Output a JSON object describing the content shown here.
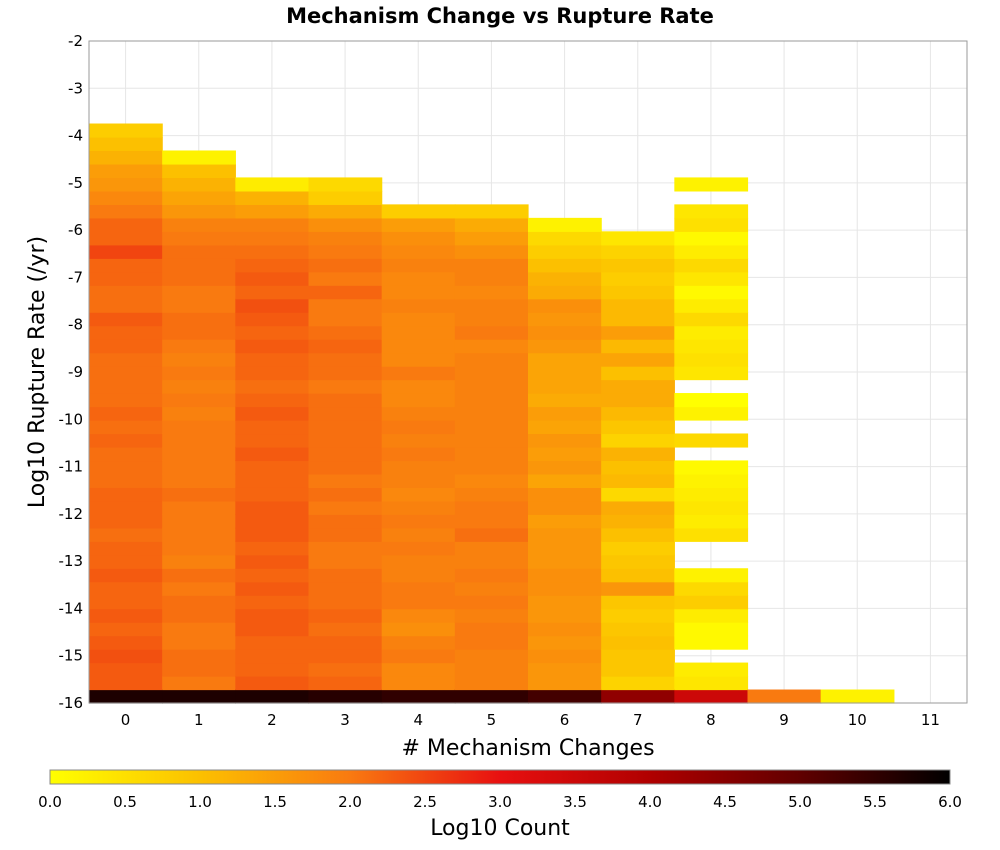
{
  "chart_data": {
    "type": "heatmap",
    "title": "Mechanism Change vs Rupture Rate",
    "xlabel": "# Mechanism Changes",
    "ylabel": "Log10 Rupture Rate (/yr)",
    "x_categories": [
      "0",
      "1",
      "2",
      "3",
      "4",
      "5",
      "6",
      "7",
      "8",
      "9",
      "10",
      "11"
    ],
    "x_tick_labels": [
      "0",
      "1",
      "2",
      "3",
      "4",
      "5",
      "6",
      "7",
      "8",
      "9",
      "10",
      "11"
    ],
    "y_tick_labels": [
      "-2",
      "-3",
      "-4",
      "-5",
      "-6",
      "-7",
      "-8",
      "-9",
      "-10",
      "-11",
      "-12",
      "-13",
      "-14",
      "-15",
      "-16"
    ],
    "ylim": [
      -16,
      -2
    ],
    "y_bin_width": 0.285,
    "grid": true,
    "colorbar": {
      "label": "Log10 Count",
      "range": [
        0.0,
        6.0
      ],
      "tick_labels": [
        "0.0",
        "0.5",
        "1.0",
        "1.5",
        "2.0",
        "2.5",
        "3.0",
        "3.5",
        "4.0",
        "4.5",
        "5.0",
        "5.5",
        "6.0"
      ],
      "stops": [
        {
          "value": 0.0,
          "color": "#ffff00"
        },
        {
          "value": 1.0,
          "color": "#fcc000"
        },
        {
          "value": 2.0,
          "color": "#f97a10"
        },
        {
          "value": 3.0,
          "color": "#e81010"
        },
        {
          "value": 4.0,
          "color": "#b00000"
        },
        {
          "value": 5.0,
          "color": "#600000"
        },
        {
          "value": 6.0,
          "color": "#000000"
        }
      ]
    },
    "columns": [
      {
        "x": "0",
        "y_start": -16,
        "values": [
          5.7,
          2.3,
          2.3,
          2.4,
          2.3,
          2.2,
          2.3,
          2.2,
          2.2,
          2.3,
          2.2,
          2.2,
          2.1,
          2.2,
          2.2,
          2.2,
          2.1,
          2.1,
          2.1,
          2.2,
          2.1,
          2.2,
          2.1,
          2.1,
          2.1,
          2.1,
          2.2,
          2.2,
          2.3,
          2.1,
          2.1,
          2.2,
          2.2,
          2.5,
          2.2,
          2.2,
          2.0,
          1.8,
          1.6,
          1.5,
          1.2,
          1.0,
          0.8
        ]
      },
      {
        "x": "1",
        "y_start": -16,
        "values": [
          5.7,
          2.0,
          2.1,
          2.1,
          2.0,
          2.0,
          2.1,
          2.1,
          2.0,
          2.1,
          1.9,
          2.0,
          2.0,
          2.0,
          2.0,
          2.1,
          2.0,
          2.0,
          2.0,
          2.0,
          2.0,
          1.9,
          2.0,
          1.9,
          2.0,
          1.9,
          2.0,
          2.1,
          2.1,
          2.0,
          2.0,
          2.1,
          2.1,
          2.1,
          2.0,
          1.9,
          1.6,
          1.4,
          1.2,
          1.0,
          0.2
        ]
      },
      {
        "x": "2",
        "y_start": -16,
        "values": [
          5.7,
          2.3,
          2.2,
          2.2,
          2.2,
          2.3,
          2.3,
          2.2,
          2.3,
          2.2,
          2.3,
          2.2,
          2.3,
          2.3,
          2.3,
          2.2,
          2.2,
          2.2,
          2.3,
          2.2,
          2.2,
          2.3,
          2.2,
          2.1,
          2.2,
          2.2,
          2.3,
          2.2,
          2.3,
          2.4,
          2.2,
          2.3,
          2.2,
          2.1,
          2.0,
          1.9,
          1.5,
          1.2,
          0.3
        ]
      },
      {
        "x": "3",
        "y_start": -16,
        "values": [
          5.6,
          2.2,
          2.1,
          2.2,
          2.2,
          2.1,
          2.2,
          2.1,
          2.1,
          2.1,
          2.0,
          2.0,
          2.1,
          2.1,
          2.0,
          2.1,
          2.0,
          2.1,
          2.1,
          2.1,
          2.1,
          2.1,
          2.1,
          2.0,
          2.1,
          2.1,
          2.2,
          2.1,
          2.0,
          2.0,
          2.2,
          2.0,
          2.1,
          2.0,
          1.9,
          1.7,
          1.3,
          0.8,
          0.6
        ]
      },
      {
        "x": "4",
        "y_start": -16,
        "values": [
          5.5,
          1.8,
          1.8,
          2.0,
          1.9,
          1.7,
          1.8,
          2.0,
          2.0,
          1.9,
          1.9,
          2.0,
          1.9,
          2.0,
          1.9,
          1.8,
          1.9,
          1.9,
          2.0,
          1.9,
          2.0,
          1.9,
          1.8,
          1.8,
          2.0,
          1.8,
          1.8,
          1.8,
          1.8,
          1.9,
          1.8,
          1.8,
          1.9,
          1.8,
          1.7,
          1.5,
          0.8
        ]
      },
      {
        "x": "5",
        "y_start": -16,
        "values": [
          5.5,
          1.9,
          1.9,
          1.9,
          2.0,
          2.0,
          1.9,
          2.0,
          1.9,
          2.0,
          1.9,
          1.9,
          2.1,
          2.0,
          2.0,
          1.9,
          1.8,
          1.9,
          1.9,
          1.9,
          1.9,
          1.9,
          1.9,
          1.9,
          1.9,
          1.9,
          1.8,
          2.0,
          1.9,
          1.9,
          1.8,
          1.9,
          1.9,
          1.7,
          1.5,
          1.3,
          0.8
        ]
      },
      {
        "x": "6",
        "y_start": -16,
        "values": [
          5.3,
          1.6,
          1.6,
          1.7,
          1.6,
          1.7,
          1.6,
          1.6,
          1.7,
          1.7,
          1.6,
          1.6,
          1.6,
          1.5,
          1.7,
          1.7,
          1.4,
          1.6,
          1.5,
          1.6,
          1.4,
          1.5,
          1.3,
          1.4,
          1.4,
          1.4,
          1.6,
          1.7,
          1.6,
          1.7,
          1.3,
          1.2,
          1.0,
          0.8,
          0.6,
          0.2
        ]
      },
      {
        "x": "7",
        "y_start": -16,
        "values": [
          4.4,
          0.7,
          0.9,
          0.9,
          1.0,
          0.9,
          0.8,
          0.9,
          1.6,
          1.0,
          0.9,
          0.8,
          1.0,
          1.2,
          1.3,
          0.6,
          1.1,
          1.0,
          1.2,
          0.7,
          0.9,
          1.1,
          1.3,
          1.3,
          1.0,
          1.4,
          1.1,
          1.5,
          1.1,
          1.1,
          0.9,
          0.8,
          0.9,
          0.7,
          0.4
        ]
      },
      {
        "x": "8",
        "y_start": -16,
        "values": [
          3.5,
          0.4,
          0.3,
          null,
          0.1,
          0.1,
          0.3,
          0.8,
          0.6,
          0.2,
          null,
          null,
          0.5,
          0.3,
          0.4,
          0.3,
          0.2,
          0.1,
          null,
          0.6,
          null,
          0.2,
          0.0,
          null,
          0.4,
          0.5,
          0.4,
          0.3,
          0.6,
          0.3,
          0.1,
          0.4,
          0.6,
          0.3,
          0.1,
          0.5,
          0.4,
          null,
          0.2
        ]
      },
      {
        "x": "9",
        "y_start": -16,
        "values": [
          2.0
        ]
      },
      {
        "x": "10",
        "y_start": -16,
        "values": [
          0.2
        ]
      },
      {
        "x": "11",
        "y_start": -16,
        "values": []
      }
    ]
  }
}
